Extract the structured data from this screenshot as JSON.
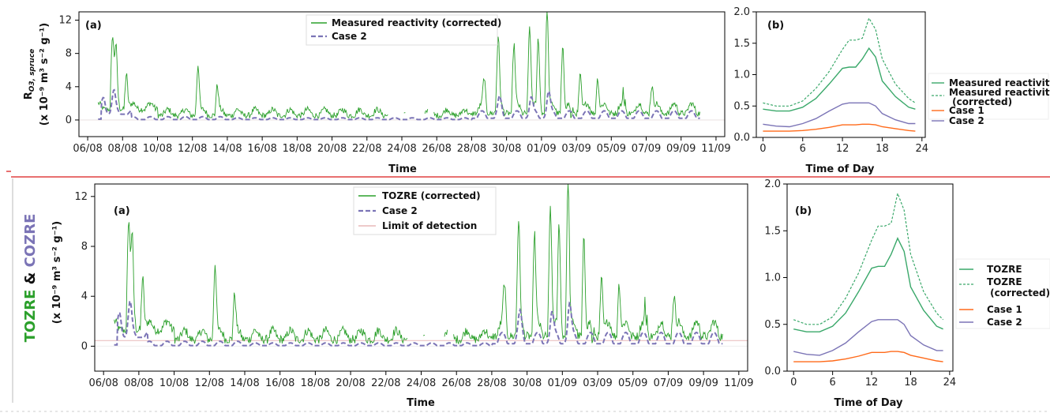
{
  "colors": {
    "measured": "#2ca02c",
    "measured_soft": "#3aa86a",
    "case1": "#ff6a1a",
    "case2": "#7b74b6",
    "lod": "#e9b9b9",
    "divider": "#e04040"
  },
  "side_label": {
    "part1": "TOZRE",
    "part2": "&",
    "part3": "COZRE"
  },
  "chart_data": [
    {
      "panel": "top-a",
      "type": "line",
      "label": "(a)",
      "xlabel": "Time",
      "ylabel_line1": "R",
      "ylabel_sub": "O3, spruce",
      "ylabel_line2": "(x 10⁻⁹ m³ s⁻² g⁻¹)",
      "xticks": [
        "06/08",
        "08/08",
        "10/08",
        "12/08",
        "14/08",
        "16/08",
        "18/08",
        "20/08",
        "22/08",
        "24/08",
        "26/08",
        "28/08",
        "30/08",
        "01/09",
        "03/09",
        "05/09",
        "07/09",
        "09/09",
        "11/09"
      ],
      "xlim_days": [
        5.5,
        42.5
      ],
      "yticks": [
        0,
        4,
        8,
        12
      ],
      "ylim": [
        -2,
        13
      ],
      "legend": [
        "Measured reactivity (corrected)",
        "Case 2"
      ],
      "legend_position": "top-center",
      "series_summary": {
        "measured_peaks": [
          {
            "date": "07/08",
            "value": 8.5
          },
          {
            "date": "12/08",
            "value": 6.0
          },
          {
            "date": "30/08",
            "value": 8.3
          },
          {
            "date": "31/08",
            "value": 10.3
          },
          {
            "date": "01/09",
            "value": 12.4
          },
          {
            "date": "02/09",
            "value": 7.8
          }
        ],
        "case2_peaks": [
          {
            "date": "06/08",
            "value": 2.7
          },
          {
            "date": "07/08",
            "value": 3.2
          },
          {
            "date": "30/08",
            "value": 2.5
          },
          {
            "date": "31/08",
            "value": 3.0
          }
        ]
      }
    },
    {
      "panel": "top-b",
      "type": "line",
      "label": "(b)",
      "xlabel": "Time of Day",
      "xticks": [
        0,
        6,
        12,
        18,
        24
      ],
      "xlim": [
        -1,
        24.5
      ],
      "yticks": [
        0.0,
        0.5,
        1.0,
        1.5,
        2.0
      ],
      "ylim": [
        0,
        2.0
      ],
      "legend": [
        "Measured reactivity",
        "Measured reactivity\n (corrected)",
        "Case 1",
        "Case 2"
      ],
      "legend_position": "right-outside",
      "hours": [
        0,
        2,
        4,
        6,
        8,
        10,
        12,
        13,
        14,
        15,
        16,
        17,
        18,
        20,
        22,
        23
      ],
      "series": [
        {
          "name": "Measured reactivity",
          "values": [
            0.45,
            0.42,
            0.42,
            0.48,
            0.62,
            0.85,
            1.1,
            1.12,
            1.12,
            1.25,
            1.42,
            1.28,
            0.9,
            0.65,
            0.48,
            0.45
          ]
        },
        {
          "name": "Measured reactivity (corrected)",
          "values": [
            0.55,
            0.5,
            0.5,
            0.58,
            0.78,
            1.05,
            1.4,
            1.55,
            1.55,
            1.58,
            1.9,
            1.72,
            1.25,
            0.85,
            0.62,
            0.55
          ]
        },
        {
          "name": "Case 1",
          "values": [
            0.1,
            0.1,
            0.1,
            0.11,
            0.13,
            0.16,
            0.2,
            0.2,
            0.2,
            0.21,
            0.21,
            0.2,
            0.17,
            0.14,
            0.11,
            0.1
          ]
        },
        {
          "name": "Case 2",
          "values": [
            0.21,
            0.18,
            0.17,
            0.22,
            0.3,
            0.42,
            0.53,
            0.55,
            0.55,
            0.55,
            0.55,
            0.5,
            0.38,
            0.28,
            0.22,
            0.22
          ]
        }
      ]
    },
    {
      "panel": "bottom-a",
      "type": "line",
      "label": "(a)",
      "xlabel": "Time",
      "ylabel_line2": "(x 10⁻⁹ m³ s⁻² g⁻¹)",
      "xticks": [
        "06/08",
        "08/08",
        "10/08",
        "12/08",
        "14/08",
        "16/08",
        "18/08",
        "20/08",
        "22/08",
        "24/08",
        "26/08",
        "28/08",
        "30/08",
        "01/09",
        "03/09",
        "05/09",
        "07/09",
        "09/09",
        "11/09"
      ],
      "xlim_days": [
        5.5,
        42.5
      ],
      "yticks": [
        0,
        4,
        8,
        12
      ],
      "ylim": [
        -2,
        13
      ],
      "legend": [
        "TOZRE (corrected)",
        "Case 2",
        "Limit of detection"
      ],
      "legend_position": "top-center",
      "limit_of_detection": 0.45
    },
    {
      "panel": "bottom-b",
      "type": "line",
      "label": "(b)",
      "xlabel": "Time of Day",
      "xticks": [
        0,
        6,
        12,
        18,
        24
      ],
      "xlim": [
        -1,
        24.5
      ],
      "yticks": [
        0.0,
        0.5,
        1.0,
        1.5,
        2.0
      ],
      "ylim": [
        0,
        2.0
      ],
      "legend": [
        "TOZRE",
        "TOZRE\n (corrected)",
        "Case 1",
        "Case 2"
      ],
      "legend_position": "right-outside"
    }
  ]
}
